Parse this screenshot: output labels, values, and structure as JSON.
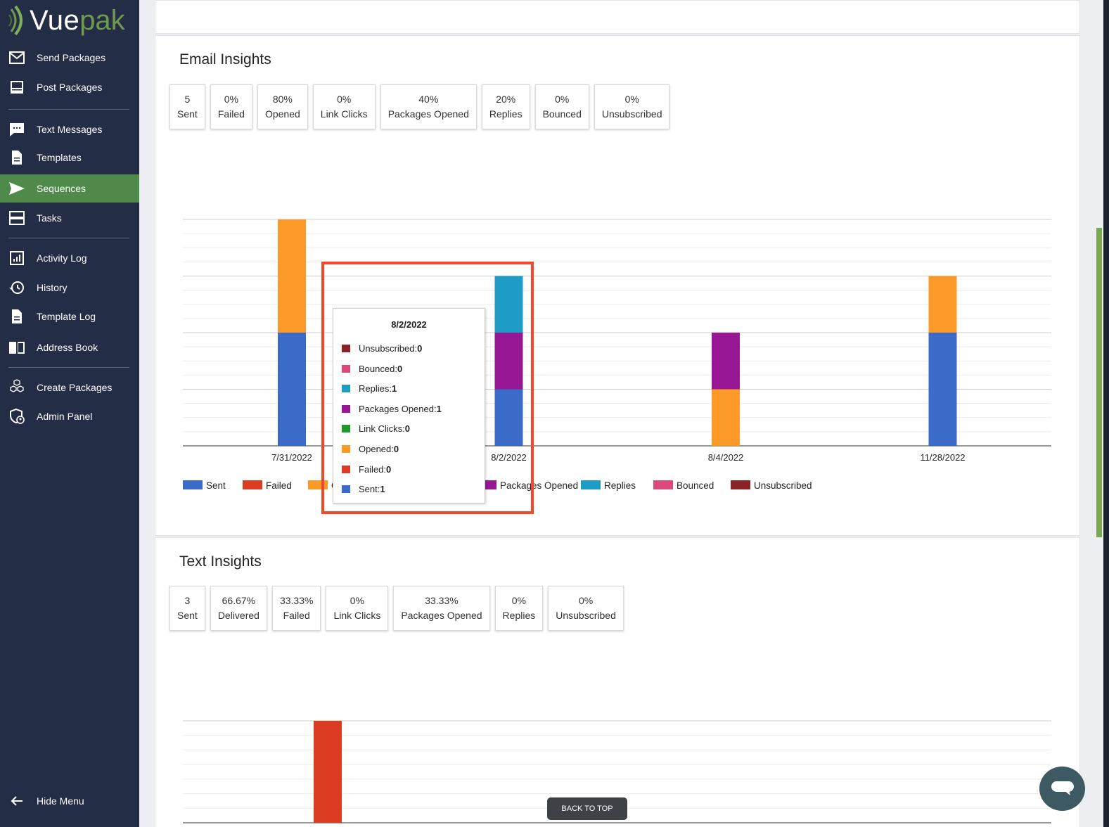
{
  "brand": {
    "logo_part1": "Vue",
    "logo_part2": "pak"
  },
  "sidebar": {
    "items": [
      {
        "label": "Send Packages",
        "icon": "envelope-icon"
      },
      {
        "label": "Post Packages",
        "icon": "post-icon"
      },
      {
        "label": "Text Messages",
        "icon": "chat-icon"
      },
      {
        "label": "Templates",
        "icon": "document-icon"
      },
      {
        "label": "Sequences",
        "icon": "send-icon",
        "active": true
      },
      {
        "label": "Tasks",
        "icon": "tasks-icon"
      },
      {
        "label": "Activity Log",
        "icon": "bar-chart-icon"
      },
      {
        "label": "History",
        "icon": "history-icon"
      },
      {
        "label": "Template Log",
        "icon": "document-icon"
      },
      {
        "label": "Address Book",
        "icon": "book-icon"
      },
      {
        "label": "Create Packages",
        "icon": "boxes-icon"
      },
      {
        "label": "Admin Panel",
        "icon": "admin-shield-icon"
      }
    ],
    "hide_menu": "Hide Menu"
  },
  "email": {
    "title": "Email Insights",
    "stats": [
      {
        "value": "5",
        "label": "Sent"
      },
      {
        "value": "0%",
        "label": "Failed"
      },
      {
        "value": "80%",
        "label": "Opened"
      },
      {
        "value": "0%",
        "label": "Link Clicks"
      },
      {
        "value": "40%",
        "label": "Packages Opened"
      },
      {
        "value": "20%",
        "label": "Replies"
      },
      {
        "value": "0%",
        "label": "Bounced"
      },
      {
        "value": "0%",
        "label": "Unsubscribed"
      }
    ]
  },
  "text": {
    "title": "Text Insights",
    "stats": [
      {
        "value": "3",
        "label": "Sent"
      },
      {
        "value": "66.67%",
        "label": "Delivered"
      },
      {
        "value": "33.33%",
        "label": "Failed"
      },
      {
        "value": "0%",
        "label": "Link Clicks"
      },
      {
        "value": "33.33%",
        "label": "Packages Opened"
      },
      {
        "value": "0%",
        "label": "Replies"
      },
      {
        "value": "0%",
        "label": "Unsubscribed"
      }
    ]
  },
  "colors": {
    "Sent": "#3a6bc9",
    "Failed": "#dc3c22",
    "Opened": "#fb9a28",
    "Link Clicks": "#1f9a2a",
    "Packages Opened": "#981795",
    "Replies": "#1e9cc6",
    "Bounced": "#dc4a7d",
    "Unsubscribed": "#8a2228",
    "accent": "#4f8a4b"
  },
  "chart_data": [
    {
      "type": "bar",
      "stacked": true,
      "categories": [
        "7/31/2022",
        "8/2/2022",
        "8/4/2022",
        "11/28/2022"
      ],
      "ylim": [
        0,
        4
      ],
      "grid": true,
      "legend": "bottom",
      "series": [
        {
          "name": "Sent",
          "values": [
            2,
            1,
            0,
            2
          ]
        },
        {
          "name": "Failed",
          "values": [
            0,
            0,
            0,
            0
          ]
        },
        {
          "name": "Opened",
          "values": [
            2,
            0,
            1,
            1
          ]
        },
        {
          "name": "Link Clicks",
          "values": [
            0,
            0,
            0,
            0
          ]
        },
        {
          "name": "Packages Opened",
          "values": [
            0,
            1,
            1,
            0
          ]
        },
        {
          "name": "Replies",
          "values": [
            0,
            1,
            0,
            0
          ]
        },
        {
          "name": "Bounced",
          "values": [
            0,
            0,
            0,
            0
          ]
        },
        {
          "name": "Unsubscribed",
          "values": [
            0,
            0,
            0,
            0
          ]
        }
      ]
    },
    {
      "type": "bar",
      "stacked": true,
      "grid": true,
      "series": [
        {
          "name": "Failed",
          "values": [
            1
          ]
        }
      ]
    }
  ],
  "tooltip": {
    "title": "8/2/2022",
    "rows": [
      {
        "label": "Unsubscribed: ",
        "value": "0",
        "series": "Unsubscribed"
      },
      {
        "label": "Bounced: ",
        "value": "0",
        "series": "Bounced"
      },
      {
        "label": "Replies: ",
        "value": "1",
        "series": "Replies"
      },
      {
        "label": "Packages Opened: ",
        "value": "1",
        "series": "Packages Opened"
      },
      {
        "label": "Link Clicks: ",
        "value": "0",
        "series": "Link Clicks"
      },
      {
        "label": "Opened: ",
        "value": "0",
        "series": "Opened"
      },
      {
        "label": "Failed: ",
        "value": "0",
        "series": "Failed"
      },
      {
        "label": "Sent: ",
        "value": "1",
        "series": "Sent"
      }
    ]
  },
  "back_to_top": "BACK TO TOP"
}
